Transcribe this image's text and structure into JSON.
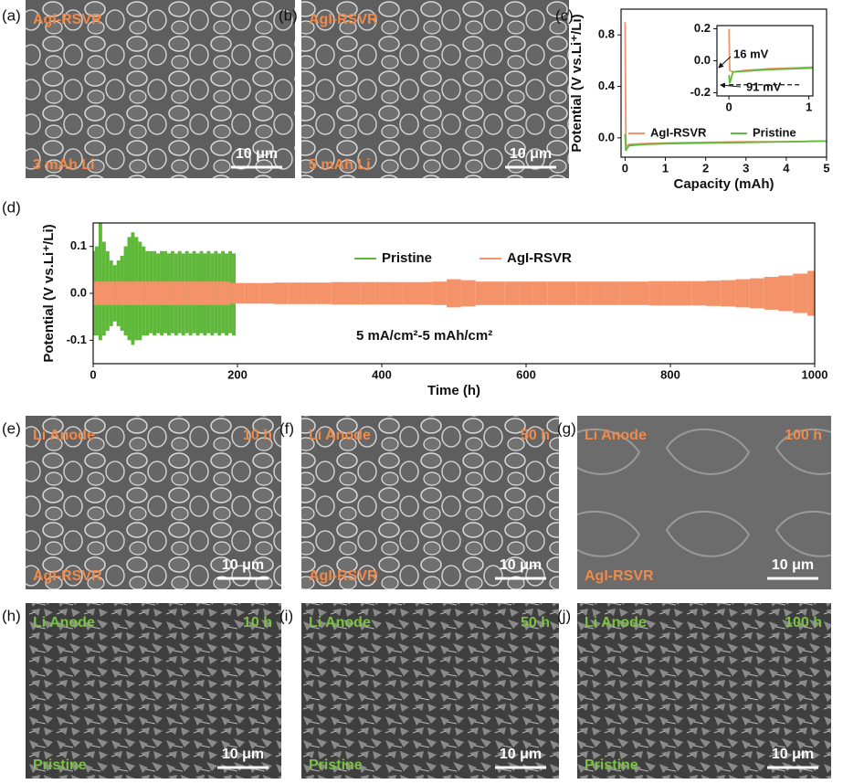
{
  "chart_data": [
    {
      "type": "line",
      "label": "(c)",
      "xlabel": "Capacity (mAh)",
      "ylabel": "Potential (V vs.Li⁺/Li)",
      "xlim": [
        -0.1,
        5.0
      ],
      "ylim": [
        -0.15,
        1.0
      ],
      "xticks": [
        0,
        1,
        2,
        3,
        4,
        5
      ],
      "yticks": [
        {
          "value": 0,
          "label": "0.0"
        },
        0.4,
        0.8
      ],
      "x": [
        0,
        0.02,
        0.05,
        0.1,
        0.5,
        1,
        2,
        3,
        4,
        5
      ],
      "series": [
        {
          "name": "AgI-RSVR",
          "color": "#f4936a",
          "values": [
            0.9,
            -0.05,
            -0.06,
            -0.05,
            -0.045,
            -0.04,
            -0.035,
            -0.03,
            -0.03,
            -0.025
          ]
        },
        {
          "name": "Pristine",
          "color": "#5fb83a",
          "values": [
            0.03,
            -0.1,
            -0.08,
            -0.06,
            -0.05,
            -0.045,
            -0.04,
            -0.035,
            -0.03,
            -0.025
          ]
        }
      ]
    },
    {
      "type": "line",
      "xlim": [
        -0.15,
        1.05
      ],
      "ylim": [
        -0.22,
        0.22
      ],
      "xticks": [
        0,
        1
      ],
      "yticks": [
        -0.2,
        {
          "value": 0,
          "label": "0.0"
        },
        0.2
      ],
      "x": [
        0,
        0.01,
        0.05,
        0.2,
        0.5,
        0.8,
        1.05
      ],
      "series": [
        {
          "color": "#f4936a",
          "values": [
            0.2,
            -0.06,
            -0.07,
            -0.06,
            -0.05,
            -0.045,
            -0.04
          ]
        },
        {
          "color": "#5fb83a",
          "values": [
            -0.09,
            -0.14,
            -0.07,
            -0.065,
            -0.055,
            -0.05,
            -0.045
          ]
        }
      ],
      "reference": {
        "y": -0.15,
        "xrange": [
          0,
          0.9
        ]
      },
      "annotations": [
        "16 mV",
        "91 mV"
      ]
    },
    {
      "type": "band",
      "label": "(d)",
      "xlabel": "Time (h)",
      "ylabel": "Potential (V vs.Li⁺/Li)",
      "xlim": [
        0,
        1000
      ],
      "ylim": [
        -0.15,
        0.15
      ],
      "xticks": [
        0,
        200,
        400,
        600,
        800,
        1000
      ],
      "yticks": [
        -0.1,
        {
          "value": 0,
          "label": "0.0"
        },
        0.1
      ],
      "annotations": [
        "5 mA/cm²-5 mAh/cm²"
      ],
      "series": [
        {
          "name": "Pristine",
          "color": "#5fb83a",
          "x": [
            0,
            5,
            10,
            15,
            20,
            25,
            30,
            35,
            40,
            45,
            50,
            55,
            60,
            65,
            70,
            75,
            80,
            85,
            90,
            95,
            100,
            105,
            110,
            115,
            120,
            125,
            130,
            135,
            140,
            145,
            150,
            155,
            160,
            165,
            170,
            175,
            180,
            185,
            190,
            195
          ],
          "upper": [
            0.09,
            0.1,
            0.15,
            0.11,
            0.09,
            0.07,
            0.06,
            0.07,
            0.08,
            0.1,
            0.12,
            0.13,
            0.12,
            0.11,
            0.1,
            0.09,
            0.09,
            0.09,
            0.085,
            0.09,
            0.09,
            0.085,
            0.09,
            0.085,
            0.09,
            0.085,
            0.09,
            0.085,
            0.09,
            0.085,
            0.09,
            0.085,
            0.09,
            0.085,
            0.09,
            0.085,
            0.09,
            0.085,
            0.09,
            0.085
          ],
          "lower": [
            -0.09,
            -0.09,
            -0.1,
            -0.09,
            -0.08,
            -0.07,
            -0.06,
            -0.07,
            -0.08,
            -0.09,
            -0.1,
            -0.11,
            -0.1,
            -0.1,
            -0.09,
            -0.09,
            -0.085,
            -0.09,
            -0.085,
            -0.09,
            -0.085,
            -0.09,
            -0.085,
            -0.09,
            -0.085,
            -0.09,
            -0.085,
            -0.09,
            -0.085,
            -0.09,
            -0.085,
            -0.09,
            -0.085,
            -0.09,
            -0.085,
            -0.09,
            -0.085,
            -0.09,
            -0.085,
            -0.09
          ]
        },
        {
          "name": "AgI-RSVR",
          "color": "#f4936a",
          "x": [
            0,
            20,
            40,
            60,
            80,
            100,
            120,
            140,
            160,
            180,
            200,
            220,
            240,
            260,
            280,
            300,
            320,
            340,
            360,
            380,
            400,
            420,
            440,
            460,
            480,
            500,
            520,
            540,
            560,
            580,
            600,
            620,
            640,
            660,
            680,
            700,
            720,
            740,
            760,
            780,
            800,
            820,
            840,
            860,
            880,
            900,
            920,
            940,
            960,
            980,
            1000
          ],
          "upper": [
            0.025,
            0.025,
            0.025,
            0.025,
            0.025,
            0.025,
            0.025,
            0.025,
            0.025,
            0.025,
            0.022,
            0.022,
            0.022,
            0.023,
            0.023,
            0.023,
            0.023,
            0.024,
            0.024,
            0.024,
            0.024,
            0.024,
            0.024,
            0.024,
            0.025,
            0.03,
            0.028,
            0.025,
            0.025,
            0.025,
            0.025,
            0.025,
            0.025,
            0.025,
            0.025,
            0.025,
            0.025,
            0.025,
            0.025,
            0.026,
            0.026,
            0.026,
            0.026,
            0.027,
            0.028,
            0.03,
            0.032,
            0.035,
            0.038,
            0.042,
            0.048
          ],
          "lower": [
            -0.025,
            -0.025,
            -0.025,
            -0.025,
            -0.025,
            -0.025,
            -0.025,
            -0.025,
            -0.025,
            -0.025,
            -0.022,
            -0.022,
            -0.022,
            -0.023,
            -0.023,
            -0.023,
            -0.023,
            -0.024,
            -0.024,
            -0.024,
            -0.024,
            -0.024,
            -0.024,
            -0.024,
            -0.025,
            -0.03,
            -0.028,
            -0.025,
            -0.025,
            -0.025,
            -0.025,
            -0.025,
            -0.025,
            -0.025,
            -0.025,
            -0.025,
            -0.025,
            -0.025,
            -0.025,
            -0.026,
            -0.026,
            -0.026,
            -0.026,
            -0.027,
            -0.028,
            -0.03,
            -0.032,
            -0.035,
            -0.038,
            -0.042,
            -0.048
          ]
        }
      ]
    }
  ],
  "images": [
    {
      "label": "(a)",
      "color": "#f08a4b",
      "texts": [
        "AgI-RSVR",
        "3 mAh Li"
      ],
      "scale": "10 μm"
    },
    {
      "label": "(b)",
      "color": "#f08a4b",
      "texts": [
        "AgI-RSVR",
        "5 mAh Li"
      ],
      "scale": "10 μm"
    },
    {
      "label": "(e)",
      "color": "#f08a4b",
      "texts": [
        "Li Anode",
        "10 h",
        "AgI-RSVR"
      ],
      "scale": "10 μm"
    },
    {
      "label": "(f)",
      "color": "#f08a4b",
      "texts": [
        "Li Anode",
        "50 h",
        "AgI-RSVR"
      ],
      "scale": "10 μm"
    },
    {
      "label": "(g)",
      "color": "#f08a4b",
      "texts": [
        "Li Anode",
        "100 h",
        "AgI-RSVR"
      ],
      "scale": "10 μm"
    },
    {
      "label": "(h)",
      "color": "#7cc242",
      "texts": [
        "Li Anode",
        "10 h",
        "Pristine"
      ],
      "scale": "10 μm"
    },
    {
      "label": "(i)",
      "color": "#7cc242",
      "texts": [
        "Li Anode",
        "50 h",
        "Pristine"
      ],
      "scale": "10 μm"
    },
    {
      "label": "(j)",
      "color": "#7cc242",
      "texts": [
        "Li Anode",
        "100 h",
        "Pristine"
      ],
      "scale": "10 μm"
    }
  ]
}
